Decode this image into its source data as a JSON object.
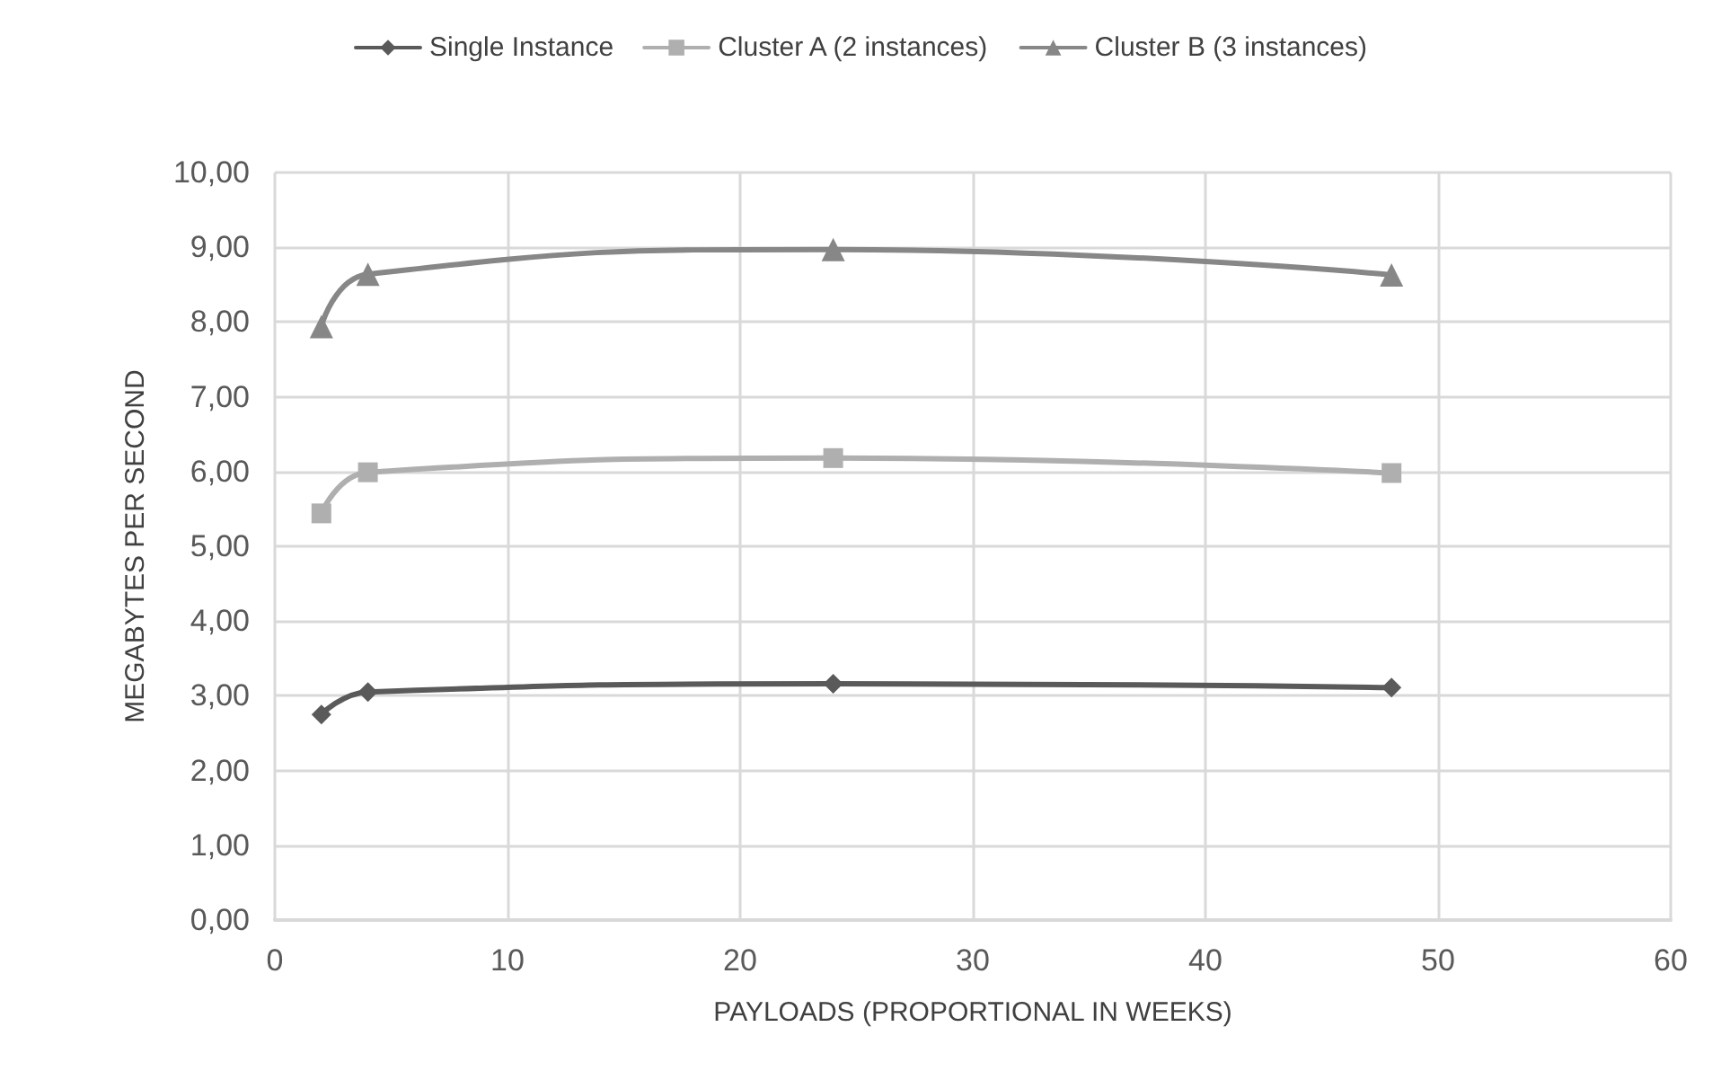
{
  "chart_data": {
    "type": "line",
    "xlabel": "PAYLOADS (PROPORTIONAL IN WEEKS)",
    "ylabel": "MEGABYTES PER SECOND",
    "x": [
      2,
      4,
      24,
      48
    ],
    "series": [
      {
        "name": "Single Instance",
        "color": "#5a5a5a",
        "marker": "diamond",
        "values": [
          2.75,
          3.05,
          3.16,
          3.11
        ]
      },
      {
        "name": "Cluster A (2 instances)",
        "color": "#afafaf",
        "marker": "square",
        "values": [
          5.44,
          5.99,
          6.18,
          5.98
        ]
      },
      {
        "name": "Cluster B (3 instances)",
        "color": "#878787",
        "marker": "triangle",
        "values": [
          7.94,
          8.64,
          8.97,
          8.63
        ]
      }
    ],
    "xlim": [
      0,
      60
    ],
    "xticks": [
      0,
      10,
      20,
      30,
      40,
      50,
      60
    ],
    "ylim": [
      0,
      10
    ],
    "yticks": [
      {
        "value": 0,
        "label": "0,00"
      },
      {
        "value": 1,
        "label": "1,00"
      },
      {
        "value": 2,
        "label": "2,00"
      },
      {
        "value": 3,
        "label": "3,00"
      },
      {
        "value": 4,
        "label": "4,00"
      },
      {
        "value": 5,
        "label": "5,00"
      },
      {
        "value": 6,
        "label": "6,00"
      },
      {
        "value": 7,
        "label": "7,00"
      },
      {
        "value": 8,
        "label": "8,00"
      },
      {
        "value": 9,
        "label": "9,00"
      },
      {
        "value": 10,
        "label": "10,00"
      }
    ],
    "grid": true,
    "legend": "top",
    "line_style": "solid"
  }
}
